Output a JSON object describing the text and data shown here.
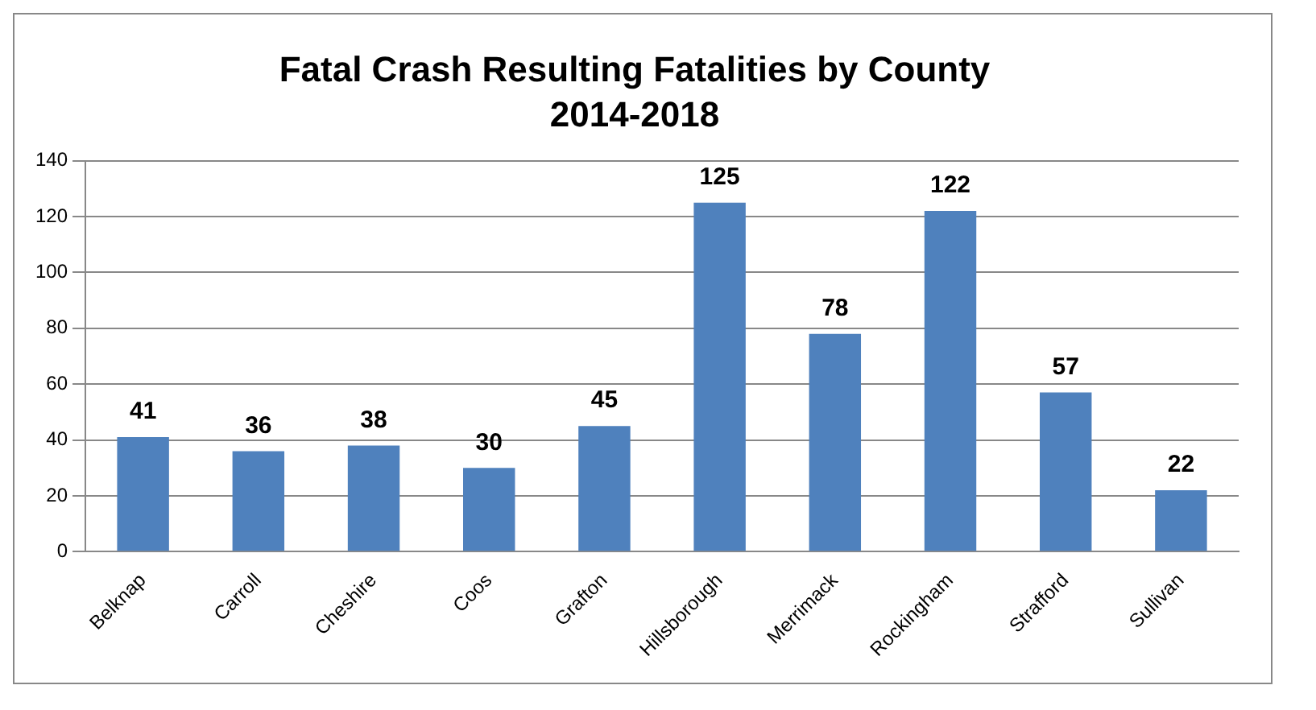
{
  "chart_data": {
    "type": "bar",
    "title": "Fatal Crash Resulting Fatalities by County",
    "subtitle": "2014-2018",
    "categories": [
      "Belknap",
      "Carroll",
      "Cheshire",
      "Coos",
      "Grafton",
      "Hillsborough",
      "Merrimack",
      "Rockingham",
      "Strafford",
      "Sullivan"
    ],
    "values": [
      41,
      36,
      38,
      30,
      45,
      125,
      78,
      122,
      57,
      22
    ],
    "color": "#4f81bd",
    "ylim": [
      0,
      140
    ],
    "yticks": [
      0,
      20,
      40,
      60,
      80,
      100,
      120,
      140
    ],
    "grid": "y",
    "data_labels": true
  }
}
